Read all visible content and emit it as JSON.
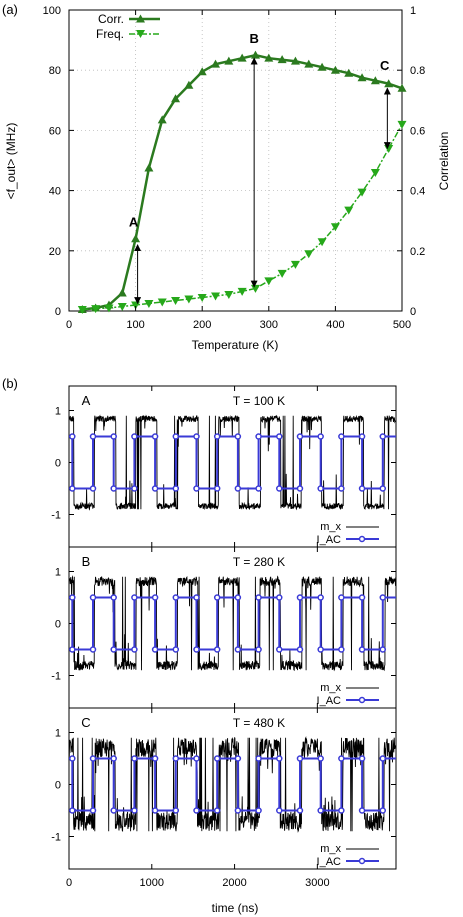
{
  "panel_a": {
    "label": "(a)",
    "chart_data": {
      "type": "line",
      "xlabel": "Temperature (K)",
      "ylabel": "<f_out> (MHz)",
      "y2label": "Correlation",
      "xlim": [
        0,
        500
      ],
      "ylim": [
        0,
        100
      ],
      "y2lim": [
        0,
        1
      ],
      "xticks": [
        "0",
        "100",
        "200",
        "300",
        "400",
        "500"
      ],
      "yticks": [
        "0",
        "20",
        "40",
        "60",
        "80",
        "100"
      ],
      "y2ticks": [
        "0",
        "0.2",
        "0.4",
        "0.6",
        "0.8",
        "1"
      ],
      "grid": true,
      "legend_position": "top-left",
      "series": [
        {
          "name": "Corr.",
          "axis": "right",
          "marker": "triangle-up",
          "color": "#2b7a1f",
          "x": [
            20,
            40,
            60,
            80,
            100,
            120,
            140,
            160,
            180,
            200,
            220,
            240,
            260,
            280,
            300,
            320,
            340,
            360,
            380,
            400,
            420,
            440,
            460,
            480,
            500
          ],
          "y": [
            0.005,
            0.01,
            0.02,
            0.06,
            0.24,
            0.475,
            0.635,
            0.705,
            0.75,
            0.795,
            0.82,
            0.83,
            0.84,
            0.85,
            0.84,
            0.835,
            0.83,
            0.82,
            0.81,
            0.8,
            0.79,
            0.775,
            0.765,
            0.755,
            0.74
          ]
        },
        {
          "name": "Freq.",
          "axis": "left",
          "marker": "triangle-down",
          "color": "#26a81a",
          "x": [
            20,
            40,
            60,
            80,
            100,
            120,
            140,
            160,
            180,
            200,
            220,
            240,
            260,
            280,
            300,
            320,
            340,
            360,
            380,
            400,
            420,
            440,
            460,
            480,
            500
          ],
          "y": [
            0.5,
            0.8,
            1,
            1.5,
            2,
            2.5,
            3,
            3.5,
            4,
            4.5,
            5,
            5.5,
            6.5,
            7.5,
            10,
            12.5,
            15.5,
            19,
            23,
            28,
            33.5,
            39.5,
            46,
            54,
            62
          ]
        }
      ],
      "annotations": [
        {
          "text": "A",
          "x": 97,
          "y_right": 0.28
        },
        {
          "text": "B",
          "x": 278,
          "y_right": 0.89
        },
        {
          "text": "C",
          "x": 474,
          "y_right": 0.8
        }
      ],
      "arrows": [
        {
          "x": 103,
          "from_right": 0.22,
          "to_left": 2.5
        },
        {
          "x": 278,
          "from_right": 0.84,
          "to_left": 8
        },
        {
          "x": 478,
          "from_right": 0.74,
          "to_left": 54
        }
      ]
    }
  },
  "panel_b": {
    "label": "(b)",
    "xlabel": "time (ns)",
    "xticks": [
      "0",
      "1000",
      "2000",
      "3000"
    ],
    "xlim": [
      0,
      3950
    ],
    "yticks": [
      "-1",
      "0",
      "1"
    ],
    "legend": {
      "mx": "m_x",
      "iac": "I_AC"
    },
    "colors": {
      "mx": "#000000",
      "iac": "#3a3ad6"
    },
    "subplots": [
      {
        "letter": "A",
        "temp": "T = 100 K",
        "noise": 0.08
      },
      {
        "letter": "B",
        "temp": "T = 280 K",
        "noise": 0.12
      },
      {
        "letter": "C",
        "temp": "T = 480 K",
        "noise": 0.25
      }
    ]
  }
}
